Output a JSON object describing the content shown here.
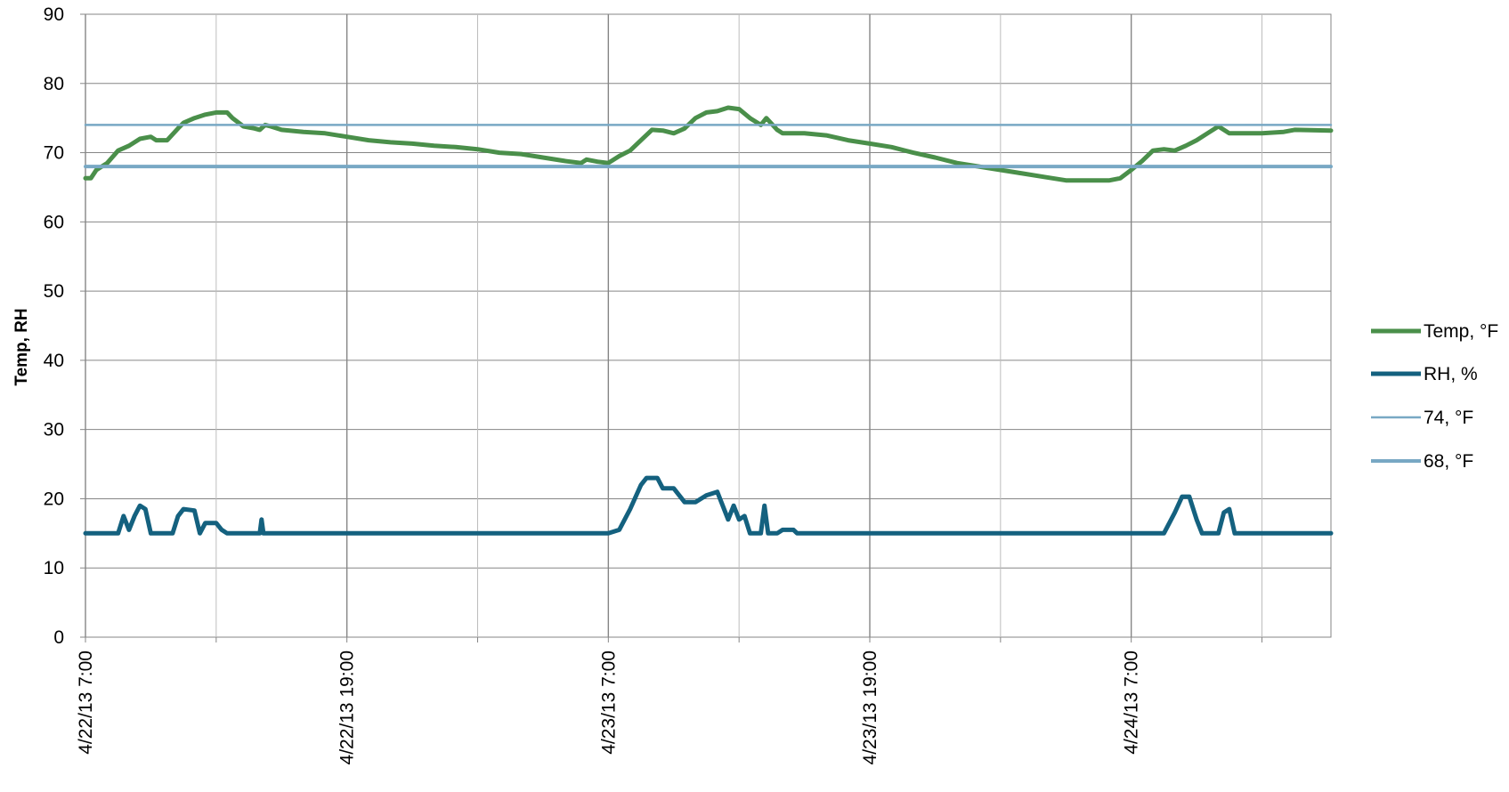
{
  "chart_data": {
    "type": "line",
    "title": "",
    "xlabel": "",
    "ylabel": "Temp, RH",
    "ylim": [
      0,
      90
    ],
    "yticks": [
      0,
      10,
      20,
      30,
      40,
      50,
      60,
      70,
      80,
      90
    ],
    "xlim": [
      "4/22/13 7:00",
      "4/24/13 16:10"
    ],
    "xtick_labels": [
      "4/22/13 7:00",
      "4/22/13 19:00",
      "4/23/13 7:00",
      "4/23/13 19:00",
      "4/24/13 7:00"
    ],
    "x_gridlines": [
      "4/22/13 7:00",
      "4/22/13 13:00",
      "4/22/13 19:00",
      "4/23/13 1:00",
      "4/23/13 7:00",
      "4/23/13 13:00",
      "4/23/13 19:00",
      "4/24/13 1:00",
      "4/24/13 7:00",
      "4/24/13 13:00"
    ],
    "grid": true,
    "legend_position": "right",
    "series": [
      {
        "name": "Temp, °F",
        "color": "#4a8f4a",
        "points": [
          [
            "4/22/13 7:00",
            66.3
          ],
          [
            "4/22/13 7:15",
            66.3
          ],
          [
            "4/22/13 7:30",
            67.5
          ],
          [
            "4/22/13 8:00",
            68.5
          ],
          [
            "4/22/13 8:30",
            70.3
          ],
          [
            "4/22/13 9:00",
            71.0
          ],
          [
            "4/22/13 9:30",
            72.0
          ],
          [
            "4/22/13 10:00",
            72.3
          ],
          [
            "4/22/13 10:15",
            71.8
          ],
          [
            "4/22/13 10:45",
            71.8
          ],
          [
            "4/22/13 11:15",
            73.5
          ],
          [
            "4/22/13 11:30",
            74.3
          ],
          [
            "4/22/13 12:00",
            75.0
          ],
          [
            "4/22/13 12:30",
            75.5
          ],
          [
            "4/22/13 13:00",
            75.8
          ],
          [
            "4/22/13 13:30",
            75.8
          ],
          [
            "4/22/13 13:45",
            75.0
          ],
          [
            "4/22/13 14:15",
            73.8
          ],
          [
            "4/22/13 14:45",
            73.5
          ],
          [
            "4/22/13 15:00",
            73.3
          ],
          [
            "4/22/13 15:15",
            74.0
          ],
          [
            "4/22/13 15:30",
            73.8
          ],
          [
            "4/22/13 16:00",
            73.3
          ],
          [
            "4/22/13 17:00",
            73.0
          ],
          [
            "4/22/13 18:00",
            72.8
          ],
          [
            "4/22/13 19:00",
            72.3
          ],
          [
            "4/22/13 20:00",
            71.8
          ],
          [
            "4/22/13 21:00",
            71.5
          ],
          [
            "4/22/13 22:00",
            71.3
          ],
          [
            "4/22/13 23:00",
            71.0
          ],
          [
            "4/23/13 0:00",
            70.8
          ],
          [
            "4/23/13 1:00",
            70.5
          ],
          [
            "4/23/13 2:00",
            70.0
          ],
          [
            "4/23/13 3:00",
            69.8
          ],
          [
            "4/23/13 4:00",
            69.3
          ],
          [
            "4/23/13 5:00",
            68.8
          ],
          [
            "4/23/13 5:45",
            68.5
          ],
          [
            "4/23/13 6:00",
            69.0
          ],
          [
            "4/23/13 6:30",
            68.7
          ],
          [
            "4/23/13 7:00",
            68.5
          ],
          [
            "4/23/13 7:30",
            69.5
          ],
          [
            "4/23/13 8:00",
            70.3
          ],
          [
            "4/23/13 8:30",
            71.8
          ],
          [
            "4/23/13 9:00",
            73.3
          ],
          [
            "4/23/13 9:30",
            73.2
          ],
          [
            "4/23/13 10:00",
            72.8
          ],
          [
            "4/23/13 10:30",
            73.5
          ],
          [
            "4/23/13 11:00",
            75.0
          ],
          [
            "4/23/13 11:30",
            75.8
          ],
          [
            "4/23/13 12:00",
            76.0
          ],
          [
            "4/23/13 12:30",
            76.5
          ],
          [
            "4/23/13 13:00",
            76.3
          ],
          [
            "4/23/13 13:30",
            75.0
          ],
          [
            "4/23/13 14:00",
            74.0
          ],
          [
            "4/23/13 14:15",
            75.0
          ],
          [
            "4/23/13 14:45",
            73.3
          ],
          [
            "4/23/13 15:00",
            72.8
          ],
          [
            "4/23/13 16:00",
            72.8
          ],
          [
            "4/23/13 17:00",
            72.5
          ],
          [
            "4/23/13 18:00",
            71.8
          ],
          [
            "4/23/13 19:00",
            71.3
          ],
          [
            "4/23/13 20:00",
            70.8
          ],
          [
            "4/23/13 21:00",
            70.0
          ],
          [
            "4/23/13 22:00",
            69.3
          ],
          [
            "4/23/13 23:00",
            68.5
          ],
          [
            "4/24/13 0:00",
            68.0
          ],
          [
            "4/24/13 1:00",
            67.5
          ],
          [
            "4/24/13 2:00",
            67.0
          ],
          [
            "4/24/13 3:00",
            66.5
          ],
          [
            "4/24/13 4:00",
            66.0
          ],
          [
            "4/24/13 5:00",
            66.0
          ],
          [
            "4/24/13 6:00",
            66.0
          ],
          [
            "4/24/13 6:30",
            66.3
          ],
          [
            "4/24/13 7:00",
            67.5
          ],
          [
            "4/24/13 7:30",
            68.8
          ],
          [
            "4/24/13 8:00",
            70.3
          ],
          [
            "4/24/13 8:30",
            70.5
          ],
          [
            "4/24/13 9:00",
            70.3
          ],
          [
            "4/24/13 9:30",
            71.0
          ],
          [
            "4/24/13 10:00",
            71.8
          ],
          [
            "4/24/13 10:30",
            72.8
          ],
          [
            "4/24/13 11:00",
            73.8
          ],
          [
            "4/24/13 11:15",
            73.3
          ],
          [
            "4/24/13 11:30",
            72.8
          ],
          [
            "4/24/13 13:00",
            72.8
          ],
          [
            "4/24/13 14:00",
            73.0
          ],
          [
            "4/24/13 14:30",
            73.3
          ],
          [
            "4/24/13 16:10",
            73.2
          ]
        ]
      },
      {
        "name": "RH, %",
        "color": "#14617f",
        "points": [
          [
            "4/22/13 7:00",
            15
          ],
          [
            "4/22/13 8:30",
            15
          ],
          [
            "4/22/13 8:45",
            17.5
          ],
          [
            "4/22/13 9:00",
            15.5
          ],
          [
            "4/22/13 9:15",
            17.5
          ],
          [
            "4/22/13 9:30",
            19.0
          ],
          [
            "4/22/13 9:45",
            18.5
          ],
          [
            "4/22/13 10:00",
            15.0
          ],
          [
            "4/22/13 11:00",
            15.0
          ],
          [
            "4/22/13 11:15",
            17.5
          ],
          [
            "4/22/13 11:30",
            18.5
          ],
          [
            "4/22/13 12:00",
            18.3
          ],
          [
            "4/22/13 12:15",
            15.0
          ],
          [
            "4/22/13 12:30",
            16.5
          ],
          [
            "4/22/13 13:00",
            16.5
          ],
          [
            "4/22/13 13:15",
            15.5
          ],
          [
            "4/22/13 13:30",
            15.0
          ],
          [
            "4/22/13 15:00",
            15.0
          ],
          [
            "4/22/13 15:05",
            17.0
          ],
          [
            "4/22/13 15:10",
            15.0
          ],
          [
            "4/23/13 7:00",
            15.0
          ],
          [
            "4/23/13 7:30",
            15.5
          ],
          [
            "4/23/13 8:00",
            18.5
          ],
          [
            "4/23/13 8:30",
            22.0
          ],
          [
            "4/23/13 8:45",
            23.0
          ],
          [
            "4/23/13 9:15",
            23.0
          ],
          [
            "4/23/13 9:30",
            21.5
          ],
          [
            "4/23/13 10:00",
            21.5
          ],
          [
            "4/23/13 10:30",
            19.5
          ],
          [
            "4/23/13 11:00",
            19.5
          ],
          [
            "4/23/13 11:30",
            20.5
          ],
          [
            "4/23/13 12:00",
            21.0
          ],
          [
            "4/23/13 12:15",
            19.0
          ],
          [
            "4/23/13 12:30",
            17.0
          ],
          [
            "4/23/13 12:45",
            19.0
          ],
          [
            "4/23/13 13:00",
            17.0
          ],
          [
            "4/23/13 13:15",
            17.5
          ],
          [
            "4/23/13 13:30",
            15.0
          ],
          [
            "4/23/13 14:00",
            15.0
          ],
          [
            "4/23/13 14:10",
            19.0
          ],
          [
            "4/23/13 14:20",
            15.0
          ],
          [
            "4/23/13 14:45",
            15.0
          ],
          [
            "4/23/13 15:00",
            15.5
          ],
          [
            "4/23/13 15:30",
            15.5
          ],
          [
            "4/23/13 15:40",
            15.0
          ],
          [
            "4/24/13 8:30",
            15.0
          ],
          [
            "4/24/13 9:00",
            18.0
          ],
          [
            "4/24/13 9:20",
            20.3
          ],
          [
            "4/24/13 9:40",
            20.3
          ],
          [
            "4/24/13 10:00",
            17.0
          ],
          [
            "4/24/13 10:15",
            15.0
          ],
          [
            "4/24/13 11:00",
            15.0
          ],
          [
            "4/24/13 11:15",
            18.0
          ],
          [
            "4/24/13 11:30",
            18.5
          ],
          [
            "4/24/13 11:45",
            15.0
          ],
          [
            "4/24/13 16:10",
            15.0
          ]
        ]
      },
      {
        "name": "74, °F",
        "color": "#78a8c4",
        "points": [
          [
            "4/22/13 7:00",
            74
          ],
          [
            "4/24/13 16:10",
            74
          ]
        ]
      },
      {
        "name": "68, °F",
        "color": "#78a8c4",
        "points": [
          [
            "4/22/13 7:00",
            68
          ],
          [
            "4/24/13 16:10",
            68
          ]
        ]
      }
    ]
  }
}
